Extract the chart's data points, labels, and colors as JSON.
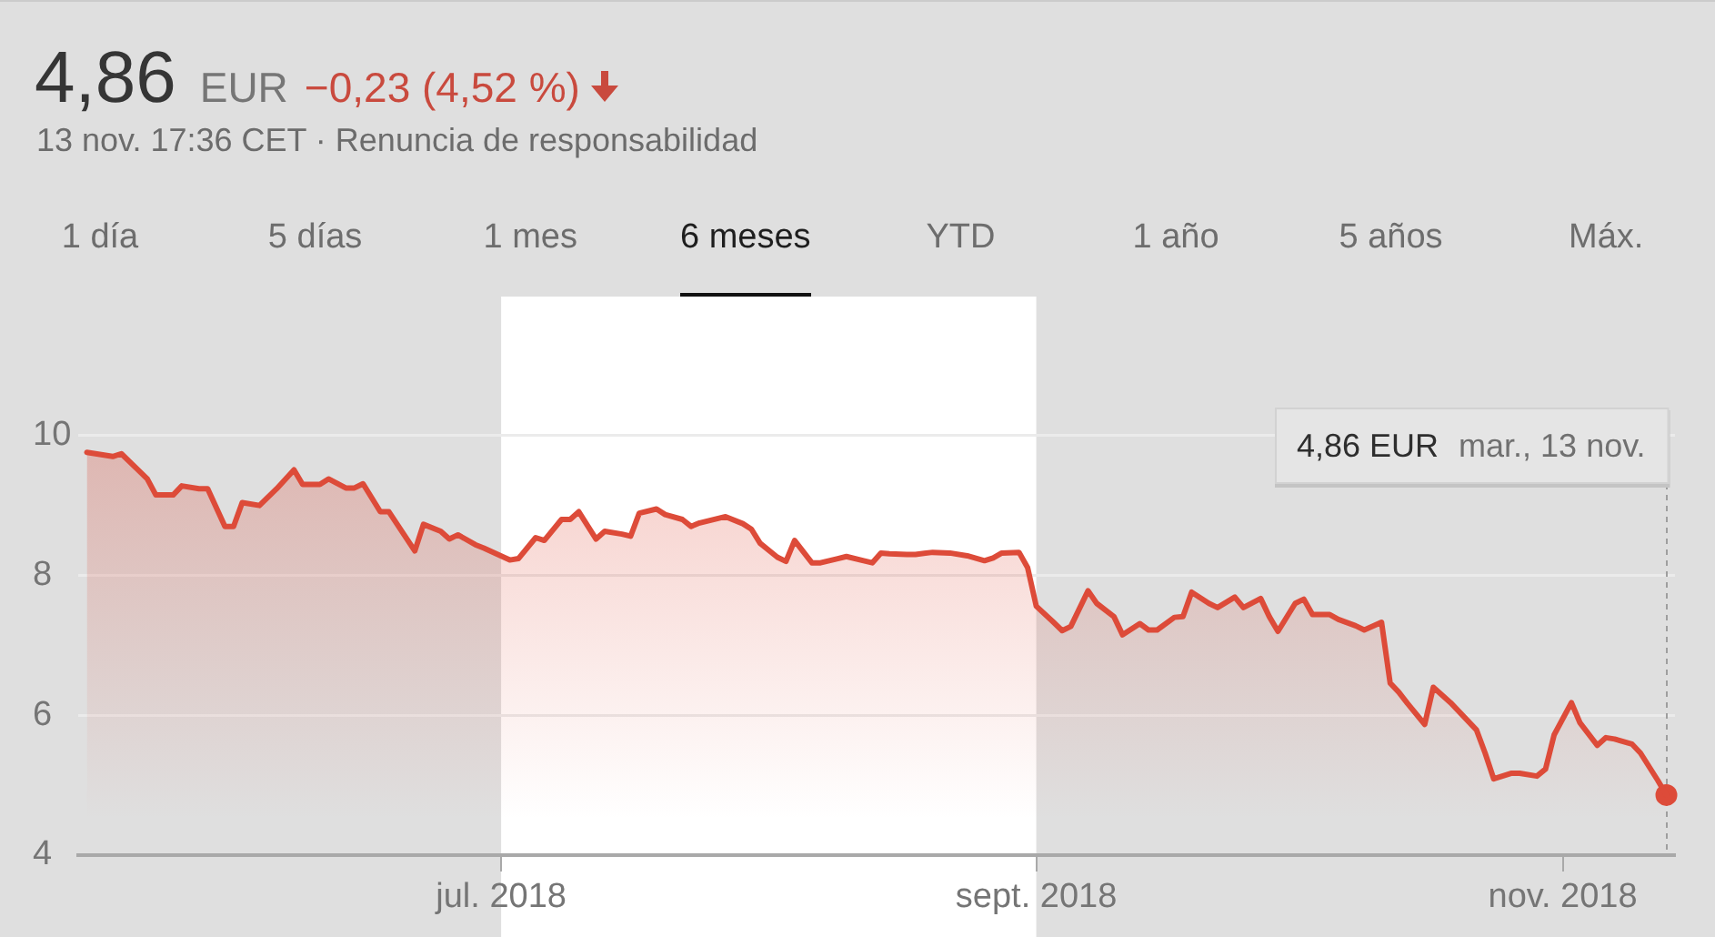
{
  "chart_data": {
    "type": "area",
    "title": "4,86",
    "subtitle": "13 nov. 17:36 CET · Renuncia de responsabilidad",
    "annotations": [
      "EUR",
      "−0,23 (4,52 %)",
      "4,86 EUR",
      "mar., 13 nov.",
      "1 día",
      "5 días",
      "1 mes",
      "6 meses",
      "YTD",
      "1 año",
      "5 años",
      "Máx."
    ],
    "xlim": [
      "2018-05-13",
      "2018-11-14"
    ],
    "xticks": [
      {
        "value": "2018-07-01",
        "label": "jul. 2018"
      },
      {
        "value": "2018-09-01",
        "label": "sept. 2018"
      },
      {
        "value": "2018-11-01",
        "label": "nov. 2018"
      }
    ],
    "ylim": [
      4,
      10.4
    ],
    "yticks": [
      4,
      6,
      8,
      10
    ],
    "grid": "y",
    "bands": [
      {
        "axis": "x",
        "from": "2018-07-01",
        "to": "2018-09-01",
        "color": "#ffffff"
      }
    ],
    "ref_lines": [
      {
        "axis": "x",
        "value": "2018-11-13",
        "color": "#9e9e9e",
        "line_style": "dashed"
      }
    ],
    "series": [
      {
        "color": "#dd4b39",
        "marker": "none",
        "x": [
          "2018-05-14",
          "2018-05-17",
          "2018-05-18",
          "2018-05-20",
          "2018-05-21",
          "2018-05-22",
          "2018-05-24",
          "2018-05-25",
          "2018-05-27",
          "2018-05-28",
          "2018-05-30",
          "2018-05-31",
          "2018-06-01",
          "2018-06-03",
          "2018-06-05",
          "2018-06-07",
          "2018-06-08",
          "2018-06-10",
          "2018-06-11",
          "2018-06-13",
          "2018-06-14",
          "2018-06-15",
          "2018-06-17",
          "2018-06-18",
          "2018-06-21",
          "2018-06-22",
          "2018-06-24",
          "2018-06-25",
          "2018-06-26",
          "2018-06-28",
          "2018-06-29",
          "2018-07-02",
          "2018-07-03",
          "2018-07-05",
          "2018-07-06",
          "2018-07-08",
          "2018-07-09",
          "2018-07-10",
          "2018-07-12",
          "2018-07-13",
          "2018-07-15",
          "2018-07-16",
          "2018-07-17",
          "2018-07-19",
          "2018-07-20",
          "2018-07-22",
          "2018-07-23",
          "2018-07-24",
          "2018-07-27",
          "2018-07-29",
          "2018-07-30",
          "2018-07-31",
          "2018-08-02",
          "2018-08-03",
          "2018-08-04",
          "2018-08-06",
          "2018-08-07",
          "2018-08-09",
          "2018-08-10",
          "2018-08-12",
          "2018-08-13",
          "2018-08-14",
          "2018-08-15",
          "2018-08-17",
          "2018-08-18",
          "2018-08-20",
          "2018-08-22",
          "2018-08-24",
          "2018-08-26",
          "2018-08-27",
          "2018-08-28",
          "2018-08-30",
          "2018-08-31",
          "2018-09-01",
          "2018-09-03",
          "2018-09-04",
          "2018-09-05",
          "2018-09-07",
          "2018-09-08",
          "2018-09-10",
          "2018-09-11",
          "2018-09-13",
          "2018-09-14",
          "2018-09-15",
          "2018-09-17",
          "2018-09-18",
          "2018-09-19",
          "2018-09-21",
          "2018-09-22",
          "2018-09-24",
          "2018-09-25",
          "2018-09-27",
          "2018-09-28",
          "2018-09-29",
          "2018-10-01",
          "2018-10-02",
          "2018-10-03",
          "2018-10-05",
          "2018-10-06",
          "2018-10-08",
          "2018-10-09",
          "2018-10-11",
          "2018-10-12",
          "2018-10-13",
          "2018-10-14",
          "2018-10-16",
          "2018-10-17",
          "2018-10-19",
          "2018-10-20",
          "2018-10-22",
          "2018-10-23",
          "2018-10-24",
          "2018-10-26",
          "2018-10-27",
          "2018-10-29",
          "2018-10-30",
          "2018-10-31",
          "2018-11-02",
          "2018-11-03",
          "2018-11-05",
          "2018-11-06",
          "2018-11-07",
          "2018-11-09",
          "2018-11-10",
          "2018-11-12",
          "2018-11-13"
        ],
        "values": [
          9.76,
          9.7,
          9.74,
          9.5,
          9.38,
          9.15,
          9.15,
          9.28,
          9.24,
          9.24,
          8.7,
          8.7,
          9.04,
          9.0,
          9.24,
          9.51,
          9.3,
          9.3,
          9.38,
          9.25,
          9.25,
          9.31,
          8.91,
          8.91,
          8.35,
          8.73,
          8.63,
          8.52,
          8.58,
          8.44,
          8.39,
          8.22,
          8.24,
          8.54,
          8.5,
          8.8,
          8.8,
          8.91,
          8.52,
          8.63,
          8.59,
          8.56,
          8.89,
          8.95,
          8.87,
          8.8,
          8.7,
          8.75,
          8.84,
          8.74,
          8.66,
          8.46,
          8.26,
          8.2,
          8.5,
          8.18,
          8.18,
          8.24,
          8.27,
          8.21,
          8.18,
          8.32,
          8.31,
          8.3,
          8.3,
          8.33,
          8.32,
          8.28,
          8.21,
          8.25,
          8.32,
          8.33,
          8.11,
          7.56,
          7.33,
          7.21,
          7.27,
          7.78,
          7.6,
          7.41,
          7.15,
          7.31,
          7.22,
          7.22,
          7.4,
          7.41,
          7.76,
          7.6,
          7.54,
          7.69,
          7.54,
          7.67,
          7.41,
          7.2,
          7.6,
          7.66,
          7.44,
          7.44,
          7.37,
          7.28,
          7.22,
          7.33,
          6.46,
          6.33,
          6.17,
          5.87,
          6.4,
          6.18,
          6.05,
          5.79,
          5.46,
          5.09,
          5.17,
          5.17,
          5.13,
          5.23,
          5.72,
          6.18,
          5.89,
          5.57,
          5.68,
          5.66,
          5.59,
          5.46,
          5.07,
          4.86
        ]
      },
      {
        "type": "scatter",
        "color": "#dd4b39",
        "marker": "circle",
        "x": [
          "2018-11-13"
        ],
        "values": [
          4.86
        ]
      }
    ]
  }
}
